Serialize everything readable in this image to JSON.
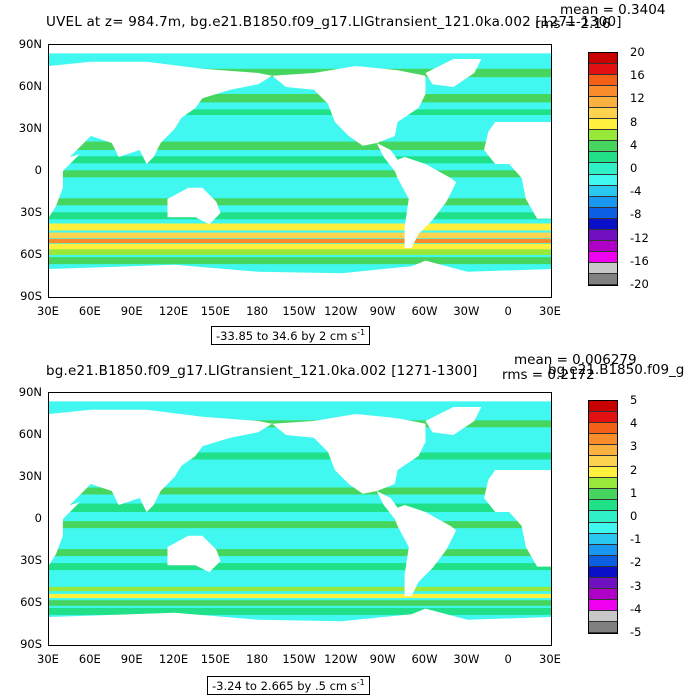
{
  "panel1": {
    "title": "UVEL at z= 984.7m, bg.e21.B1850.f09_g17.LIGtransient_121.0ka.002 [1271-1300]",
    "mean": "mean = 0.3404",
    "rms": "rms = 2.16",
    "range": "-33.85 to 34.6 by 2 cm s",
    "range_sup": "-1",
    "colorbar_labels": [
      "20",
      "16",
      "12",
      "8",
      "4",
      "0",
      "-4",
      "-8",
      "-12",
      "-16",
      "-20"
    ],
    "colors": [
      "#c80000",
      "#e21010",
      "#f56018",
      "#fa8c2c",
      "#fbb040",
      "#fdd24e",
      "#fef03c",
      "#98e83a",
      "#46d660",
      "#20e088",
      "#30f0c8",
      "#40f8f0",
      "#28c8f0",
      "#1898f0",
      "#0a60e0",
      "#0a10c8",
      "#7010c0",
      "#b000c8",
      "#f000f0",
      "#c8c8c8",
      "#808080"
    ],
    "bands": [
      {
        "lat": 87,
        "h": 4,
        "c": "#20e088"
      },
      {
        "lat": 80,
        "h": 5,
        "c": "#40f8f0"
      },
      {
        "lat": 70,
        "h": 6,
        "c": "#46d660"
      },
      {
        "lat": 60,
        "h": 5,
        "c": "#40f8f0"
      },
      {
        "lat": 52,
        "h": 6,
        "c": "#46d660"
      },
      {
        "lat": 42,
        "h": 4,
        "c": "#20e088"
      },
      {
        "lat": 30,
        "h": 6,
        "c": "#40f8f0"
      },
      {
        "lat": 18,
        "h": 6,
        "c": "#46d660"
      },
      {
        "lat": 8,
        "h": 5,
        "c": "#20e088"
      },
      {
        "lat": -2,
        "h": 5,
        "c": "#46d660"
      },
      {
        "lat": -12,
        "h": 5,
        "c": "#40f8f0"
      },
      {
        "lat": -22,
        "h": 5,
        "c": "#46d660"
      },
      {
        "lat": -32,
        "h": 5,
        "c": "#20e088"
      },
      {
        "lat": -40,
        "h": 5,
        "c": "#fef03c"
      },
      {
        "lat": -46,
        "h": 4,
        "c": "#fdd24e"
      },
      {
        "lat": -50,
        "h": 3,
        "c": "#fa8c2c"
      },
      {
        "lat": -54,
        "h": 4,
        "c": "#fef03c"
      },
      {
        "lat": -58,
        "h": 4,
        "c": "#98e83a"
      },
      {
        "lat": -64,
        "h": 5,
        "c": "#46d660"
      }
    ]
  },
  "panel2": {
    "title": "bg.e21.B1850.f09_g17.LIGtransient_121.0ka.002 [1271-1300]",
    "mean": "mean = 0.006279",
    "rms": "rms = 0.2172",
    "overlap": "bg.e21.B1850.f09_g",
    "range": "-3.24 to 2.665 by .5 cm s",
    "range_sup": "-1",
    "colorbar_labels": [
      "5",
      "4",
      "3",
      "2",
      "1",
      "0",
      "-1",
      "-2",
      "-3",
      "-4",
      "-5"
    ],
    "colors": [
      "#c80000",
      "#e21010",
      "#f56018",
      "#fa8c2c",
      "#fbb040",
      "#fdd24e",
      "#fef03c",
      "#98e83a",
      "#46d660",
      "#20e088",
      "#30f0c8",
      "#40f8f0",
      "#28c8f0",
      "#1898f0",
      "#0a60e0",
      "#0a10c8",
      "#7010c0",
      "#b000c8",
      "#f000f0",
      "#c8c8c8",
      "#808080"
    ],
    "bands": [
      {
        "lat": 87,
        "h": 4,
        "c": "#20e088"
      },
      {
        "lat": 78,
        "h": 6,
        "c": "#40f8f0"
      },
      {
        "lat": 68,
        "h": 5,
        "c": "#46d660"
      },
      {
        "lat": 55,
        "h": 6,
        "c": "#40f8f0"
      },
      {
        "lat": 45,
        "h": 5,
        "c": "#20e088"
      },
      {
        "lat": 32,
        "h": 6,
        "c": "#40f8f0"
      },
      {
        "lat": 20,
        "h": 5,
        "c": "#46d660"
      },
      {
        "lat": 8,
        "h": 6,
        "c": "#20e088"
      },
      {
        "lat": -4,
        "h": 5,
        "c": "#46d660"
      },
      {
        "lat": -14,
        "h": 5,
        "c": "#40f8f0"
      },
      {
        "lat": -24,
        "h": 5,
        "c": "#46d660"
      },
      {
        "lat": -34,
        "h": 5,
        "c": "#20e088"
      },
      {
        "lat": -44,
        "h": 5,
        "c": "#40f8f0"
      },
      {
        "lat": -50,
        "h": 3,
        "c": "#98e83a"
      },
      {
        "lat": -55,
        "h": 3,
        "c": "#fef03c"
      },
      {
        "lat": -60,
        "h": 4,
        "c": "#46d660"
      },
      {
        "lat": -66,
        "h": 5,
        "c": "#20e088"
      }
    ]
  },
  "lat_labels": [
    "90N",
    "60N",
    "30N",
    "0",
    "30S",
    "60S",
    "90S"
  ],
  "lon_labels": [
    "30E",
    "60E",
    "90E",
    "120E",
    "150E",
    "180",
    "150W",
    "120W",
    "90W",
    "60W",
    "30W",
    "0",
    "30E"
  ],
  "ocean_base": "#40f8f0",
  "land_color": "#ffffff"
}
